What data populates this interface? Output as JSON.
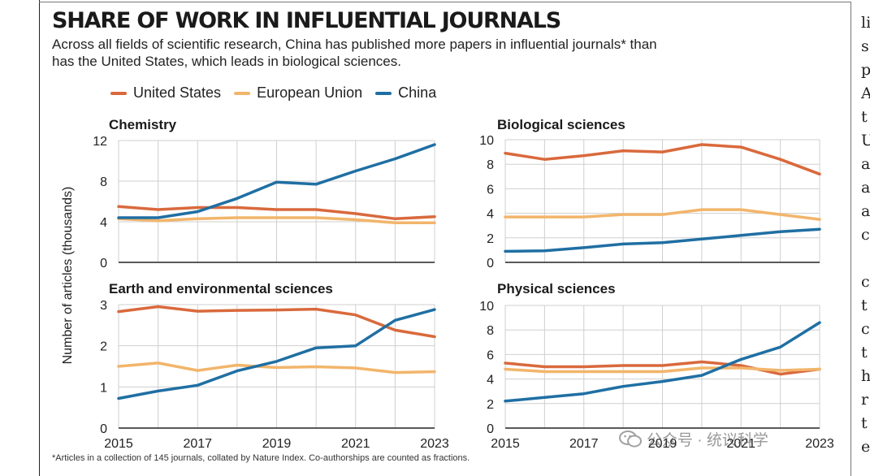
{
  "title": "SHARE OF WORK IN INFLUENTIAL JOURNALS",
  "subtitle": "Across all fields of scientific research, China has published more papers in influential journals* than has the United States, which leads in biological sciences.",
  "footnote": "*Articles in a collection of 145 journals, collated by Nature Index. Co-authorships are counted as fractions.",
  "ylabel": "Number of articles (thousands)",
  "legend": [
    {
      "name": "United States",
      "color": "#d9693c"
    },
    {
      "name": "European Union",
      "color": "#f2b56b"
    },
    {
      "name": "China",
      "color": "#1f6fa3"
    }
  ],
  "watermark": "公众号 · 统议科学",
  "watermark_icon": "wechat-icon",
  "right_column_text": [
    "li",
    "s",
    "p",
    "A",
    "t",
    "U",
    "a",
    "a",
    "a",
    "c",
    "",
    "c",
    "t",
    "c",
    "t",
    "h",
    "r",
    "t",
    "e"
  ],
  "chart_data": [
    {
      "type": "line",
      "title": "Chemistry",
      "x": [
        2015,
        2016,
        2017,
        2018,
        2019,
        2020,
        2021,
        2022,
        2023
      ],
      "xticks": [],
      "ylim": [
        0,
        12
      ],
      "yticks": [
        0,
        4,
        8,
        12
      ],
      "grid": true,
      "series": [
        {
          "name": "United States",
          "color": "#d9693c",
          "values": [
            5.5,
            5.2,
            5.4,
            5.4,
            5.2,
            5.2,
            4.8,
            4.3,
            4.5
          ]
        },
        {
          "name": "European Union",
          "color": "#f2b56b",
          "values": [
            4.3,
            4.1,
            4.3,
            4.4,
            4.4,
            4.4,
            4.2,
            3.9,
            3.9
          ]
        },
        {
          "name": "China",
          "color": "#1f6fa3",
          "values": [
            4.4,
            4.4,
            5.0,
            6.3,
            7.9,
            7.7,
            9.0,
            10.2,
            11.6
          ]
        }
      ]
    },
    {
      "type": "line",
      "title": "Biological sciences",
      "x": [
        2015,
        2016,
        2017,
        2018,
        2019,
        2020,
        2021,
        2022,
        2023
      ],
      "xticks": [],
      "ylim": [
        0,
        10
      ],
      "yticks": [
        0,
        2,
        4,
        6,
        8,
        10
      ],
      "grid": true,
      "series": [
        {
          "name": "United States",
          "color": "#d9693c",
          "values": [
            8.9,
            8.4,
            8.7,
            9.1,
            9.0,
            9.6,
            9.4,
            8.4,
            7.2
          ]
        },
        {
          "name": "European Union",
          "color": "#f2b56b",
          "values": [
            3.7,
            3.7,
            3.7,
            3.9,
            3.9,
            4.3,
            4.3,
            3.9,
            3.5
          ]
        },
        {
          "name": "China",
          "color": "#1f6fa3",
          "values": [
            0.9,
            0.95,
            1.2,
            1.5,
            1.6,
            1.9,
            2.2,
            2.5,
            2.7
          ]
        }
      ]
    },
    {
      "type": "line",
      "title": "Earth and environmental sciences",
      "x": [
        2015,
        2016,
        2017,
        2018,
        2019,
        2020,
        2021,
        2022,
        2023
      ],
      "xticks": [
        2015,
        2017,
        2019,
        2021,
        2023
      ],
      "ylim": [
        0,
        3
      ],
      "yticks": [
        0,
        1,
        2,
        3
      ],
      "grid": true,
      "series": [
        {
          "name": "United States",
          "color": "#d9693c",
          "values": [
            2.83,
            2.95,
            2.84,
            2.86,
            2.87,
            2.89,
            2.75,
            2.38,
            2.22
          ]
        },
        {
          "name": "European Union",
          "color": "#f2b56b",
          "values": [
            1.5,
            1.58,
            1.4,
            1.53,
            1.47,
            1.49,
            1.46,
            1.35,
            1.37
          ]
        },
        {
          "name": "China",
          "color": "#1f6fa3",
          "values": [
            0.72,
            0.9,
            1.04,
            1.39,
            1.62,
            1.95,
            2.0,
            2.62,
            2.88
          ]
        }
      ]
    },
    {
      "type": "line",
      "title": "Physical sciences",
      "x": [
        2015,
        2016,
        2017,
        2018,
        2019,
        2020,
        2021,
        2022,
        2023
      ],
      "xticks": [
        2015,
        2017,
        2019,
        2021,
        2023
      ],
      "ylim": [
        0,
        10
      ],
      "yticks": [
        0,
        2,
        4,
        6,
        8,
        10
      ],
      "grid": true,
      "series": [
        {
          "name": "United States",
          "color": "#d9693c",
          "values": [
            5.3,
            5.0,
            5.0,
            5.1,
            5.1,
            5.4,
            5.1,
            4.4,
            4.8
          ]
        },
        {
          "name": "European Union",
          "color": "#f2b56b",
          "values": [
            4.8,
            4.6,
            4.6,
            4.6,
            4.6,
            4.9,
            4.9,
            4.7,
            4.8
          ]
        },
        {
          "name": "China",
          "color": "#1f6fa3",
          "values": [
            2.2,
            2.5,
            2.8,
            3.4,
            3.8,
            4.3,
            5.6,
            6.6,
            8.6
          ]
        }
      ]
    }
  ]
}
